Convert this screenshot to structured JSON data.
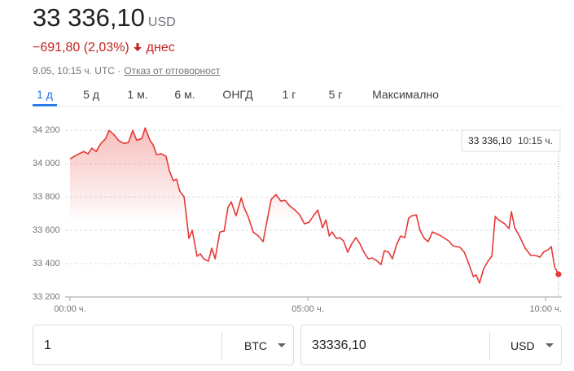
{
  "header": {
    "price": "33 336,10",
    "currency": "USD",
    "change": "−691,80 (2,03%)",
    "change_suffix": "днес",
    "timestamp": "9.05, 10:15 ч. UTC ·",
    "disclaimer": "Отказ от отговорност"
  },
  "tabs": [
    "1 д",
    "5 д",
    "1 м.",
    "6 м.",
    "ОНГД",
    "1 г",
    "5 г",
    "Максимално"
  ],
  "selected_tab": 0,
  "chart_data": {
    "type": "line",
    "color": "#e53935",
    "x": [
      0,
      0.15,
      0.29,
      0.38,
      0.46,
      0.55,
      0.65,
      0.75,
      0.82,
      0.92,
      1.03,
      1.13,
      1.23,
      1.32,
      1.4,
      1.51,
      1.58,
      1.68,
      1.75,
      1.82,
      1.92,
      2.02,
      2.09,
      2.17,
      2.24,
      2.31,
      2.4,
      2.5,
      2.57,
      2.67,
      2.74,
      2.81,
      2.91,
      2.98,
      3.05,
      3.15,
      3.24,
      3.32,
      3.39,
      3.49,
      3.6,
      3.66,
      3.75,
      3.85,
      3.96,
      4.06,
      4.13,
      4.23,
      4.33,
      4.43,
      4.52,
      4.62,
      4.73,
      4.83,
      4.93,
      5.03,
      5.12,
      5.21,
      5.31,
      5.38,
      5.45,
      5.51,
      5.6,
      5.67,
      5.75,
      5.84,
      5.92,
      6.01,
      6.1,
      6.18,
      6.27,
      6.35,
      6.44,
      6.54,
      6.61,
      6.7,
      6.78,
      6.87,
      6.95,
      7.04,
      7.12,
      7.19,
      7.28,
      7.36,
      7.45,
      7.53,
      7.62,
      7.77,
      7.96,
      8.05,
      8.2,
      8.29,
      8.39,
      8.48,
      8.54,
      8.61,
      8.7,
      8.8,
      8.87,
      8.94,
      9.01,
      9.14,
      9.23,
      9.28,
      9.35,
      9.45,
      9.57,
      9.69,
      9.79,
      9.88,
      9.97,
      10.05,
      10.12,
      10.19,
      10.27
    ],
    "values": [
      34029,
      34054,
      34073,
      34059,
      34093,
      34073,
      34122,
      34151,
      34200,
      34176,
      34137,
      34122,
      34127,
      34200,
      34141,
      34151,
      34215,
      34141,
      34112,
      34054,
      34059,
      34044,
      33956,
      33898,
      33907,
      33834,
      33800,
      33551,
      33600,
      33444,
      33459,
      33429,
      33415,
      33493,
      33429,
      33590,
      33595,
      33737,
      33771,
      33688,
      33795,
      33737,
      33678,
      33590,
      33566,
      33532,
      33639,
      33785,
      33815,
      33776,
      33780,
      33746,
      33722,
      33693,
      33639,
      33649,
      33688,
      33722,
      33615,
      33663,
      33566,
      33590,
      33551,
      33556,
      33537,
      33468,
      33517,
      33556,
      33517,
      33468,
      33429,
      33434,
      33420,
      33395,
      33478,
      33468,
      33429,
      33517,
      33566,
      33556,
      33673,
      33688,
      33693,
      33600,
      33551,
      33532,
      33590,
      33571,
      33537,
      33507,
      33498,
      33468,
      33395,
      33322,
      33332,
      33283,
      33371,
      33420,
      33444,
      33683,
      33663,
      33639,
      33610,
      33712,
      33615,
      33566,
      33493,
      33449,
      33449,
      33439,
      33473,
      33483,
      33502,
      33380,
      33336.1
    ],
    "xlim": [
      0,
      10.34
    ],
    "xticks": [
      {
        "value": 0,
        "label": "00:00 ч."
      },
      {
        "value": 5,
        "label": "05:00 ч."
      },
      {
        "value": 10,
        "label": "10:00 ч."
      }
    ],
    "ylim": [
      33200,
      34250
    ],
    "yticks": [
      {
        "value": 33200,
        "label": "33 200"
      },
      {
        "value": 33400,
        "label": "33 400"
      },
      {
        "value": 33600,
        "label": "33 600"
      },
      {
        "value": 33800,
        "label": "33 800"
      },
      {
        "value": 34000,
        "label": "34 000"
      },
      {
        "value": 34200,
        "label": "34 200"
      }
    ],
    "grid": true,
    "tooltip": {
      "value": "33 336,10",
      "time": "10:15 ч."
    }
  },
  "converter": {
    "from_amount": "1",
    "from_currency": "BTC",
    "to_amount": "33336,10",
    "to_currency": "USD"
  }
}
